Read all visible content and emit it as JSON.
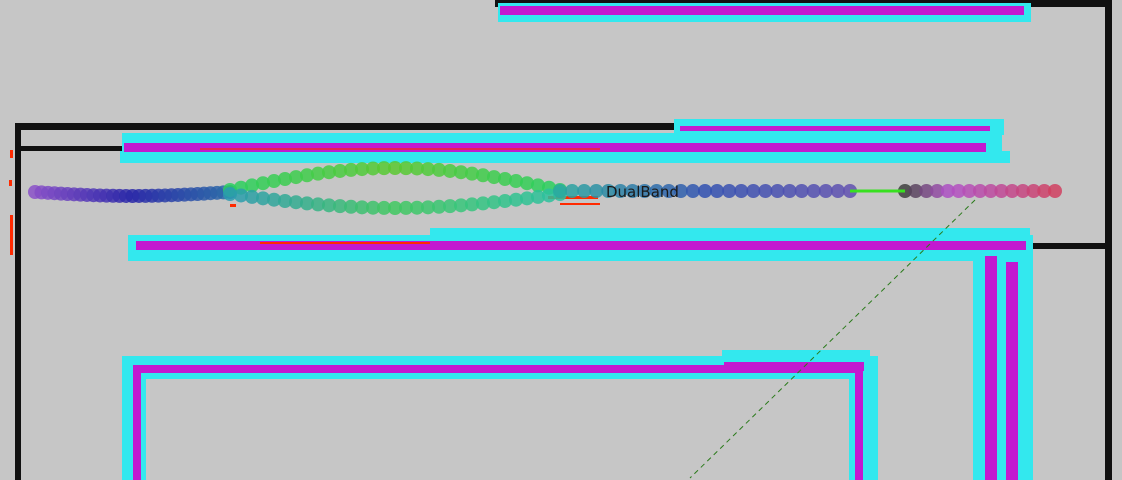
{
  "scene": {
    "robot_label": "DualBand",
    "colors": {
      "background": "#c6c6c6",
      "wall": "#111111",
      "inflation_outer": "#33e8ee",
      "inflation_inner": "#c21ad0",
      "laser": "#ff2a00",
      "plan_line": "#2a7a1a"
    }
  }
}
